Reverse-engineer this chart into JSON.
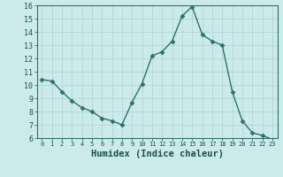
{
  "x": [
    0,
    1,
    2,
    3,
    4,
    5,
    6,
    7,
    8,
    9,
    10,
    11,
    12,
    13,
    14,
    15,
    16,
    17,
    18,
    19,
    20,
    21,
    22,
    23
  ],
  "y": [
    10.4,
    10.3,
    9.5,
    8.8,
    8.3,
    8.0,
    7.5,
    7.3,
    7.0,
    8.7,
    10.1,
    12.2,
    12.5,
    13.3,
    15.2,
    15.9,
    13.8,
    13.3,
    13.0,
    9.5,
    7.3,
    6.4,
    6.2,
    5.9
  ],
  "xlabel": "Humidex (Indice chaleur)",
  "ylim": [
    6,
    16
  ],
  "xlim_min": -0.5,
  "xlim_max": 23.5,
  "yticks": [
    6,
    7,
    8,
    9,
    10,
    11,
    12,
    13,
    14,
    15,
    16
  ],
  "xticks": [
    0,
    1,
    2,
    3,
    4,
    5,
    6,
    7,
    8,
    9,
    10,
    11,
    12,
    13,
    14,
    15,
    16,
    17,
    18,
    19,
    20,
    21,
    22,
    23
  ],
  "xtick_labels": [
    "0",
    "1",
    "2",
    "3",
    "4",
    "5",
    "6",
    "7",
    "8",
    "9",
    "10",
    "11",
    "12",
    "13",
    "14",
    "15",
    "16",
    "17",
    "18",
    "19",
    "20",
    "21",
    "22",
    "23"
  ],
  "line_color": "#2e7070",
  "marker": "D",
  "marker_size": 2.5,
  "background_color": "#cceaea",
  "grid_color": "#b0d8d8",
  "spine_color": "#2e7070"
}
